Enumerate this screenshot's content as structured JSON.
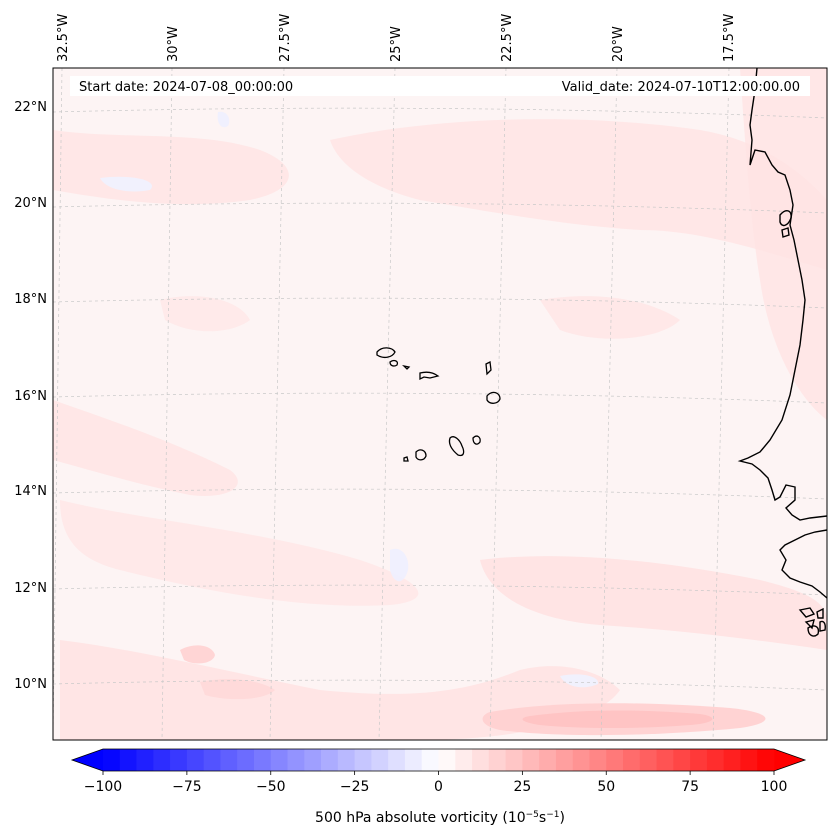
{
  "header": {
    "start_date": "Start date: 2024-07-08_00:00:00",
    "valid_date": "Valid_date: 2024-07-10T12:00:00.00"
  },
  "longitude_labels": [
    "32.5°W",
    "30°W",
    "27.5°W",
    "25°W",
    "22.5°W",
    "20°W",
    "17.5°W"
  ],
  "latitude_labels": [
    "22°N",
    "20°N",
    "18°N",
    "16°N",
    "14°N",
    "12°N",
    "10°N"
  ],
  "colorbar": {
    "label_prefix": "500 hPa absolute vorticity (10",
    "label_exp1": "−5",
    "label_mid": "s",
    "label_exp2": "−1",
    "label_suffix": ")",
    "ticks": [
      "−100",
      "−75",
      "−50",
      "−25",
      "0",
      "25",
      "50",
      "75",
      "100"
    ],
    "min": -100,
    "max": 100,
    "step": 5,
    "low_color": "#0000ff",
    "mid_color": "#ffffff",
    "high_color": "#ff0000"
  },
  "colors": {
    "background_field": "#fdf4f4",
    "light_pink": "#ffe3e3",
    "medium_pink": "#ffcfcf",
    "light_blue": "#eef0ff",
    "coast": "#000000",
    "grid": "#c8c8c8"
  }
}
